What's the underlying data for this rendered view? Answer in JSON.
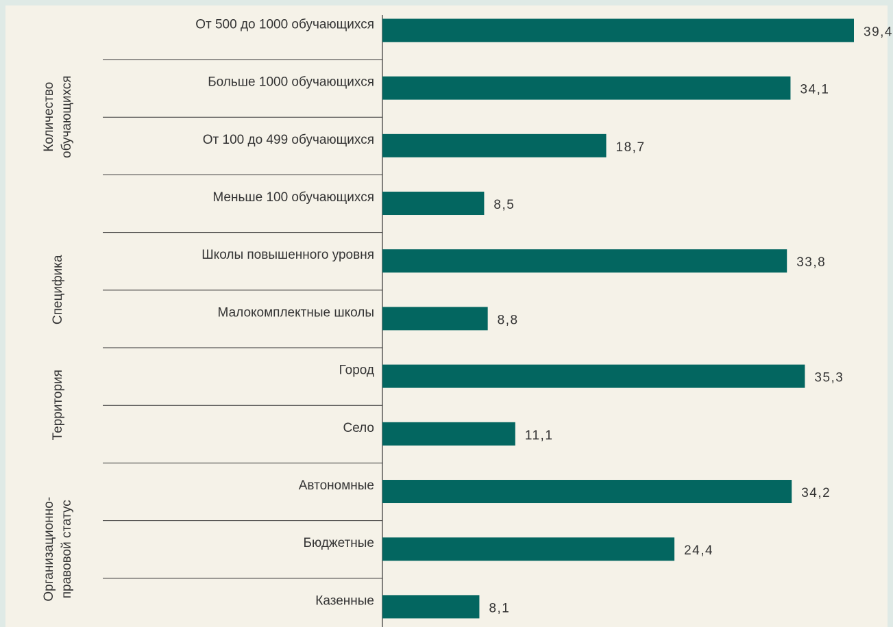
{
  "chart_data": {
    "type": "bar",
    "orientation": "horizontal",
    "color": "#036660",
    "groups": [
      {
        "label": [
          "Количество",
          "обучающихся"
        ],
        "categories": [
          "От 500 до 1000 обучающихся",
          "Больше 1000 обучающихся",
          "От 100 до 499 обучающихся",
          "Меньше 100 обучающихся"
        ],
        "values": [
          39.4,
          34.1,
          18.7,
          8.5
        ],
        "value_labels": [
          "39,4",
          "34,1",
          "18,7",
          "8,5"
        ]
      },
      {
        "label": [
          "Специфика"
        ],
        "categories": [
          "Школы повышенного уровня",
          "Малокомплектные школы"
        ],
        "values": [
          33.8,
          8.8
        ],
        "value_labels": [
          "33,8",
          "8,8"
        ]
      },
      {
        "label": [
          "Территория"
        ],
        "categories": [
          "Город",
          "Село"
        ],
        "values": [
          35.3,
          11.1
        ],
        "value_labels": [
          "35,3",
          "11,1"
        ]
      },
      {
        "label": [
          "Организационно-",
          "правовой статус"
        ],
        "categories": [
          "Автономные",
          "Бюджетные",
          "Казенные"
        ],
        "values": [
          34.2,
          24.4,
          8.1
        ],
        "value_labels": [
          "34,2",
          "24,4",
          "8,1"
        ]
      }
    ]
  }
}
